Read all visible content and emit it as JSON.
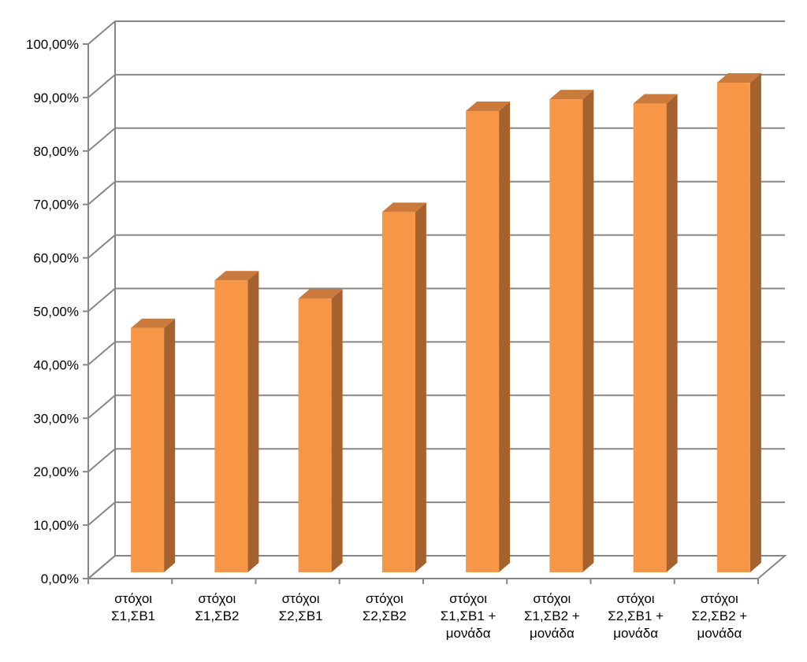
{
  "chart_data": {
    "type": "bar",
    "title": "",
    "xlabel": "",
    "ylabel": "",
    "ylim": [
      0,
      100
    ],
    "yticks": [
      "0,00%",
      "10,00%",
      "20,00%",
      "30,00%",
      "40,00%",
      "50,00%",
      "60,00%",
      "70,00%",
      "80,00%",
      "90,00%",
      "100,00%"
    ],
    "categories": [
      [
        "στόχοι",
        "Σ1,ΣΒ1"
      ],
      [
        "στόχοι",
        "Σ1,ΣΒ2"
      ],
      [
        "στόχοι",
        "Σ2,ΣΒ1"
      ],
      [
        "στόχοι",
        "Σ2,ΣΒ2"
      ],
      [
        "στόχοι",
        "Σ1,ΣΒ1 +",
        "μονάδα"
      ],
      [
        "στόχοι",
        "Σ1,ΣΒ2 +",
        "μονάδα"
      ],
      [
        "στόχοι",
        "Σ2,ΣΒ1 +",
        "μονάδα"
      ],
      [
        "στόχοι",
        "Σ2,ΣΒ2 +",
        "μονάδα"
      ]
    ],
    "values": [
      45.7,
      54.6,
      51.2,
      67.4,
      86.3,
      88.5,
      87.7,
      91.6
    ],
    "grid": true,
    "legend": "none",
    "colors": {
      "front": "#F79646",
      "side": "#A5622F",
      "top": "#C97A3C",
      "grid": "#868686",
      "axis": "#868686"
    }
  }
}
